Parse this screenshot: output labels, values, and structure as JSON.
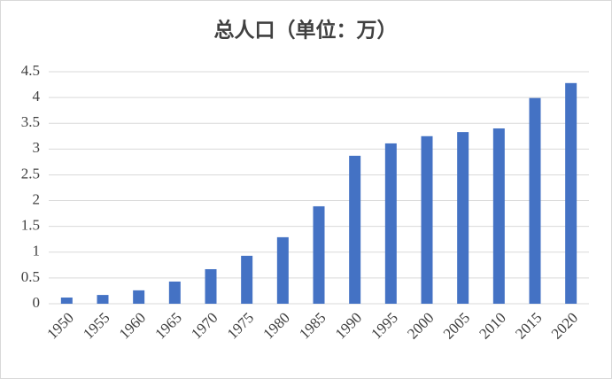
{
  "chart_data": {
    "type": "bar",
    "title": "总人口（单位：万）",
    "categories": [
      "1950",
      "1955",
      "1960",
      "1965",
      "1970",
      "1975",
      "1980",
      "1985",
      "1990",
      "1995",
      "2000",
      "2005",
      "2010",
      "2015",
      "2020"
    ],
    "values": [
      0.12,
      0.17,
      0.26,
      0.43,
      0.67,
      0.93,
      1.29,
      1.89,
      2.87,
      3.11,
      3.25,
      3.33,
      3.4,
      3.99,
      4.28
    ],
    "color": "#4472c4",
    "ylim": [
      0,
      4.5
    ],
    "yticks": [
      0,
      0.5,
      1,
      1.5,
      2,
      2.5,
      3,
      3.5,
      4,
      4.5
    ],
    "grid": true
  }
}
